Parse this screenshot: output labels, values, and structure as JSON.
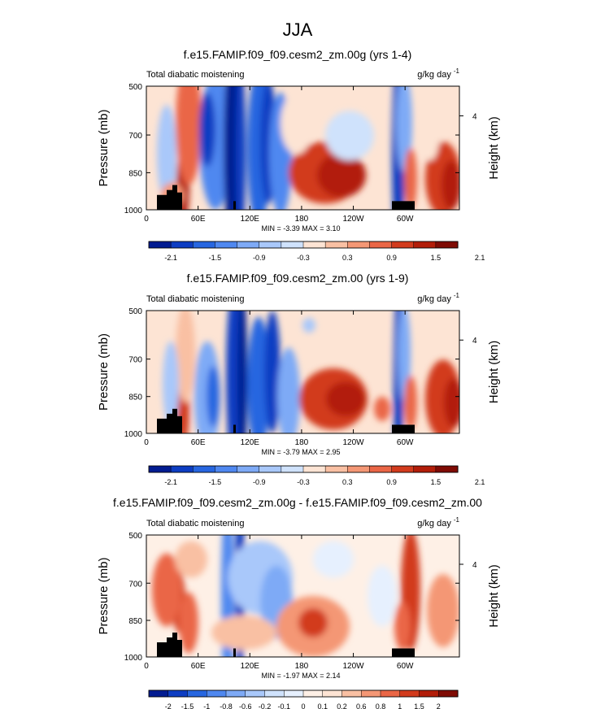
{
  "figure_title": "JJA",
  "panels": [
    {
      "title": "f.e15.FAMIP.f09_f09.cesm2_zm.00g (yrs 1-4)",
      "left_label": "Total diabatic moistening",
      "units_base": "g/kg day",
      "units_exp": "-1",
      "stats": "MIN = -3.39 MAX = 3.10",
      "colorbar_labels": [
        "-2.1",
        "-1.5",
        "-0.9",
        "-0.3",
        "0.3",
        "0.9",
        "1.5",
        "2.1"
      ]
    },
    {
      "title": "f.e15.FAMIP.f09_f09.cesm2_zm.00 (yrs 1-9)",
      "left_label": "Total diabatic moistening",
      "units_base": "g/kg day",
      "units_exp": "-1",
      "stats": "MIN = -3.79 MAX = 2.95",
      "colorbar_labels": [
        "-2.1",
        "-1.5",
        "-0.9",
        "-0.3",
        "0.3",
        "0.9",
        "1.5",
        "2.1"
      ]
    },
    {
      "title": "f.e15.FAMIP.f09_f09.cesm2_zm.00g - f.e15.FAMIP.f09_f09.cesm2_zm.00",
      "left_label": "Total diabatic moistening",
      "units_base": "g/kg day",
      "units_exp": "-1",
      "stats": "MIN = -1.97 MAX = 2.14",
      "colorbar_labels": [
        "-2",
        "-1.5",
        "-1",
        "-0.8",
        "-0.6",
        "-0.2",
        "-0.1",
        "0",
        "0.1",
        "0.2",
        "0.6",
        "0.8",
        "1",
        "1.5",
        "2"
      ]
    }
  ],
  "axes": {
    "ylabel": "Pressure (mb)",
    "ylabel_right": "Height (km)",
    "yticks": [
      "500",
      "700",
      "850",
      "1000"
    ],
    "yticks_right": [
      "4"
    ],
    "xticks": [
      "0",
      "60E",
      "120E",
      "180",
      "120W",
      "60W"
    ]
  },
  "chart_data": {
    "type": "heatmap",
    "title": "JJA",
    "x": "longitude",
    "y": "pressure (mb)",
    "ylim": [
      1000,
      500
    ],
    "xticks": [
      "0",
      "60E",
      "120E",
      "180",
      "120W",
      "60W"
    ],
    "colors_main": [
      "#021c91",
      "#0d3dc2",
      "#2766e0",
      "#4f88f0",
      "#7eaaf6",
      "#a9c8fa",
      "#cfe2fc",
      "#fde4d4",
      "#f9c0a3",
      "#f49775",
      "#ea6646",
      "#d23b1d",
      "#b21d09",
      "#7f0b04"
    ],
    "colors_diff": [
      "#021c91",
      "#0d3dc2",
      "#2766e0",
      "#4f88f0",
      "#7eaaf6",
      "#a9c8fa",
      "#cfe2fc",
      "#e6f0fe",
      "#fef0e6",
      "#fde4d4",
      "#f9c0a3",
      "#f49775",
      "#ea6646",
      "#d23b1d",
      "#b21d09",
      "#7f0b04"
    ],
    "panels": [
      {
        "min": -3.39,
        "max": 3.1
      },
      {
        "min": -3.79,
        "max": 2.95
      },
      {
        "min": -1.97,
        "max": 2.14
      }
    ]
  }
}
